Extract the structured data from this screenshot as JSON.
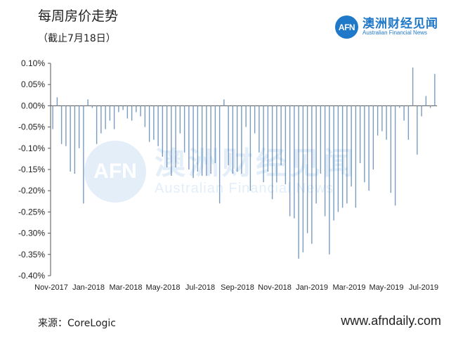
{
  "header": {
    "title": "每周房价走势",
    "subtitle": "（截止7月18日）"
  },
  "brand": {
    "logo_text": "AFN",
    "name_cn": "澳洲财经见闻",
    "name_en": "Australian Financial News",
    "color": "#1f78c8"
  },
  "watermark": {
    "logo_text": "AFN",
    "name_cn": "澳洲财经见闻",
    "name_en": "Australian Financial News"
  },
  "footer": {
    "source": "来源：CoreLogic",
    "website": "www.afndaily.com"
  },
  "chart_data": {
    "type": "bar",
    "bar_color": "#7a9cc0",
    "ylim": [
      -0.4,
      0.1
    ],
    "y_ticks": [
      "0.10%",
      "0.05%",
      "0.00%",
      "-0.05%",
      "-0.10%",
      "-0.15%",
      "-0.20%",
      "-0.25%",
      "-0.30%",
      "-0.35%",
      "-0.40%"
    ],
    "y_tick_values": [
      0.1,
      0.05,
      0.0,
      -0.05,
      -0.1,
      -0.15,
      -0.2,
      -0.25,
      -0.3,
      -0.35,
      -0.4
    ],
    "x_ticks": [
      "Nov-2017",
      "Jan-2018",
      "Mar-2018",
      "May-2018",
      "Jul-2018",
      "Sep-2018",
      "Nov-2018",
      "Jan-2019",
      "Mar-2019",
      "May-2019",
      "Jul-2019"
    ],
    "units": "%",
    "values": [
      -0.055,
      0.02,
      -0.09,
      -0.095,
      -0.155,
      -0.16,
      -0.1,
      -0.23,
      0.015,
      -0.005,
      -0.09,
      -0.065,
      -0.055,
      -0.035,
      -0.055,
      -0.015,
      -0.01,
      -0.03,
      -0.035,
      -0.015,
      -0.025,
      -0.05,
      -0.085,
      -0.08,
      -0.095,
      -0.12,
      -0.145,
      -0.165,
      -0.145,
      -0.065,
      -0.11,
      -0.15,
      -0.17,
      -0.155,
      -0.165,
      -0.165,
      -0.16,
      -0.135,
      -0.23,
      0.015,
      -0.14,
      -0.16,
      -0.155,
      -0.16,
      -0.05,
      -0.2,
      -0.065,
      -0.11,
      -0.18,
      -0.155,
      -0.22,
      -0.18,
      -0.14,
      -0.185,
      -0.26,
      -0.265,
      -0.36,
      -0.345,
      -0.3,
      -0.325,
      -0.23,
      -0.16,
      -0.26,
      -0.35,
      -0.27,
      -0.25,
      -0.24,
      -0.23,
      -0.19,
      -0.24,
      -0.135,
      -0.18,
      -0.2,
      -0.15,
      -0.07,
      -0.06,
      -0.08,
      -0.205,
      -0.235,
      -0.005,
      -0.035,
      -0.08,
      0.09,
      -0.115,
      -0.025,
      0.023,
      -0.005,
      0.075
    ]
  }
}
